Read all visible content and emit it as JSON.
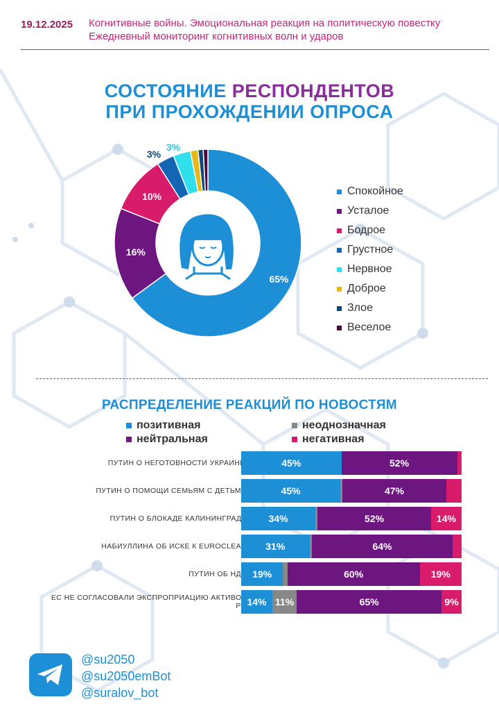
{
  "header": {
    "date": "19.12.2025",
    "line1": "Когнитивные войны. Эмоциональная реакция на политическую повестку",
    "line2": "Ежедневный мониторинг когнитивных волн и ударов"
  },
  "chart_data": [
    {
      "type": "pie",
      "title": "СОСТОЯНИЕ РЕСПОНДЕНТОВ ПРИ ПРОХОЖДЕНИИ ОПРОСА",
      "title_line1_a": "СОСТОЯНИЕ",
      "title_line1_b": "РЕСПОНДЕНТОВ",
      "title_line2": "ПРИ ПРОХОЖДЕНИИ ОПРОСА",
      "labels": [
        "Спокойное",
        "Усталое",
        "Бодрое",
        "Грустное",
        "Нервное",
        "Доброе",
        "Злое",
        "Веселое"
      ],
      "values": [
        65,
        16,
        10,
        3,
        3,
        1.3,
        0.9,
        0.8
      ],
      "data_labels": [
        "65%",
        "16%",
        "10%",
        "3%",
        "3%",
        "",
        "",
        ""
      ],
      "colors": [
        "#1d8fd6",
        "#6e1680",
        "#d81b6a",
        "#1565b5",
        "#2fe0ec",
        "#e8b81a",
        "#0d4a77",
        "#4a0a40"
      ],
      "legend_position": "right"
    },
    {
      "type": "bar",
      "stacked": true,
      "orientation": "horizontal",
      "title": "РАСПРЕДЕЛЕНИЕ РЕАКЦИЙ ПО НОВОСТЯМ",
      "categories": [
        "ПУТИН О НЕГОТОВНОСТИ УКРАИНЫ",
        "ПУТИН О ПОМОЩИ СЕМЬЯМ С ДЕТЬМИ",
        "ПУТИН О БЛОКАДЕ КАЛИНИНГРАДА",
        "НАБИУЛЛИНА ОБ ИСКЕ К EUROCLEAR",
        "ПУТИН ОБ НДС",
        "ЕС НЕ СОГЛАСОВАЛИ ЭКСПРОПРИАЦИЮ АКТИВОВ РФ"
      ],
      "series": [
        {
          "name": "позитивная",
          "color": "#1d8fd6",
          "values": [
            45,
            45,
            34,
            31,
            19,
            14
          ],
          "labels": [
            "45%",
            "45%",
            "34%",
            "31%",
            "19%",
            "14%"
          ]
        },
        {
          "name": "неоднозначная",
          "color": "#888888",
          "values": [
            0,
            1,
            1,
            1,
            2,
            11
          ],
          "labels": [
            "",
            "",
            "",
            "",
            "",
            "11%"
          ]
        },
        {
          "name": "нейтральная",
          "color": "#6e1680",
          "values": [
            52,
            47,
            52,
            64,
            60,
            65
          ],
          "labels": [
            "52%",
            "47%",
            "52%",
            "64%",
            "60%",
            "65%"
          ]
        },
        {
          "name": "негативная",
          "color": "#d81b6a",
          "values": [
            2,
            7,
            14,
            4,
            19,
            9
          ],
          "labels": [
            "",
            "",
            "14%",
            "",
            "19%",
            "9%"
          ]
        }
      ],
      "legend_position": "top"
    }
  ],
  "social": {
    "handle1": "@su2050",
    "handle2": "@su2050emBot",
    "handle3": "@suralov_bot",
    "icon": "telegram-icon"
  }
}
